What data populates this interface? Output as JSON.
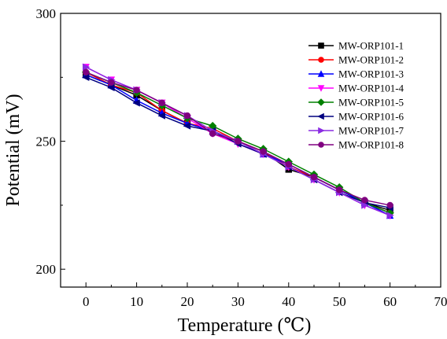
{
  "chart_data": {
    "type": "line",
    "title": "",
    "xlabel": "Temperature (℃)",
    "ylabel": "Potential (mV)",
    "xlim": [
      -5,
      70
    ],
    "ylim": [
      193,
      300
    ],
    "xticks": [
      0,
      10,
      20,
      30,
      40,
      50,
      60,
      70
    ],
    "yticks": [
      200,
      250,
      300
    ],
    "x": [
      0,
      5,
      10,
      15,
      20,
      25,
      30,
      35,
      40,
      45,
      50,
      55,
      60
    ],
    "legend_position": "top-right",
    "grid": false,
    "series": [
      {
        "name": "MW-ORP101-1",
        "color": "#000000",
        "marker": "square",
        "values": [
          276,
          272,
          268,
          262,
          257,
          254,
          250,
          246,
          239,
          236,
          231,
          226,
          223
        ]
      },
      {
        "name": "MW-ORP101-2",
        "color": "#ff0000",
        "marker": "circle",
        "values": [
          277,
          272,
          269,
          262,
          257,
          255,
          250,
          246,
          240,
          236,
          231,
          226,
          222
        ]
      },
      {
        "name": "MW-ORP101-3",
        "color": "#0000ff",
        "marker": "triangle-up",
        "values": [
          276,
          272,
          266,
          261,
          257,
          254,
          250,
          245,
          241,
          236,
          231,
          226,
          221
        ]
      },
      {
        "name": "MW-ORP101-4",
        "color": "#ff00ff",
        "marker": "triangle-down",
        "values": [
          279,
          274,
          270,
          265,
          259,
          253,
          249,
          245,
          240,
          235,
          230,
          225,
          221
        ]
      },
      {
        "name": "MW-ORP101-5",
        "color": "#008000",
        "marker": "diamond",
        "values": [
          277,
          273,
          269,
          264,
          259,
          256,
          251,
          247,
          242,
          237,
          232,
          226,
          222
        ]
      },
      {
        "name": "MW-ORP101-6",
        "color": "#000080",
        "marker": "triangle-left",
        "values": [
          275,
          271,
          265,
          260,
          256,
          254,
          249,
          245,
          240,
          235,
          230,
          226,
          224
        ]
      },
      {
        "name": "MW-ORP101-7",
        "color": "#8a2be2",
        "marker": "triangle-right",
        "values": [
          279,
          274,
          270,
          265,
          260,
          254,
          250,
          245,
          240,
          235,
          230,
          225,
          221
        ]
      },
      {
        "name": "MW-ORP101-8",
        "color": "#800080",
        "marker": "circle",
        "values": [
          277,
          273,
          270,
          265,
          260,
          253,
          250,
          246,
          241,
          236,
          231,
          227,
          225
        ]
      }
    ]
  }
}
